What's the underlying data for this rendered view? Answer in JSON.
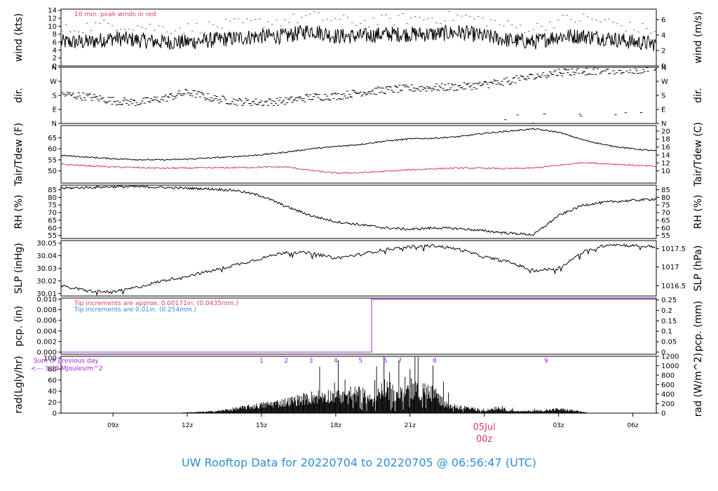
{
  "title": "UW Rooftop Data for 20220704  to  20220705 @ 06:56:47  (UTC)",
  "colors": {
    "black": "#000000",
    "red": "#d9405e",
    "blue": "#2b8ed6",
    "purple": "#a020f0"
  },
  "x_axis": {
    "ticks": [
      {
        "hour": 9,
        "label": "09z"
      },
      {
        "hour": 12,
        "label": "12z"
      },
      {
        "hour": 15,
        "label": "15z"
      },
      {
        "hour": 18,
        "label": "18z"
      },
      {
        "hour": 21,
        "label": "21z"
      },
      {
        "hour": 24,
        "label": "00z"
      },
      {
        "hour": 27,
        "label": "03z"
      },
      {
        "hour": 30,
        "label": "06z"
      }
    ],
    "date_label": "05Jul",
    "date_hour": 24,
    "range_hours": [
      6.9,
      30.95
    ]
  },
  "chart_data": [
    {
      "id": "wind",
      "type": "line",
      "ylabel": "wind (kts)",
      "ylabel_right": "wind (m/s)",
      "ylim": [
        0,
        14.3
      ],
      "yticks": [
        0,
        2,
        4,
        6,
        8,
        10,
        12,
        14
      ],
      "yticks_right": [
        {
          "label": "0",
          "value": 0
        },
        {
          "label": "2",
          "value": 3.89
        },
        {
          "label": "4",
          "value": 7.78
        },
        {
          "label": "6",
          "value": 11.66
        }
      ],
      "annotation": "10 min. peak winds in red",
      "series": [
        {
          "role": "wind",
          "hours": [
            7,
            8,
            9,
            10,
            11,
            12,
            13,
            14,
            15,
            16,
            17,
            18,
            19,
            20,
            21,
            22,
            23,
            24,
            25,
            26,
            27,
            28,
            29,
            30,
            31
          ],
          "values": [
            6,
            6,
            7,
            6.5,
            6,
            6,
            6.5,
            7,
            7.5,
            7.5,
            9,
            7.5,
            7.5,
            8,
            8,
            8,
            8.5,
            7.5,
            6.5,
            6,
            7.5,
            7.5,
            7,
            6,
            5.5
          ],
          "jitter": 2
        },
        {
          "role": "peak",
          "hours": [
            7,
            8,
            9,
            10,
            11,
            12,
            13,
            14,
            15,
            16,
            17,
            18,
            19,
            20,
            21,
            22,
            23,
            24,
            25,
            26,
            27,
            28,
            29,
            30,
            31
          ],
          "values": [
            9,
            10,
            10.5,
            10,
            9.5,
            9.5,
            10,
            10.5,
            11,
            11.5,
            12.5,
            11.5,
            11,
            11.5,
            12,
            12,
            12.5,
            11.5,
            10,
            9.5,
            11.5,
            12,
            11,
            9.5,
            9
          ],
          "jitter": 1.5
        }
      ]
    },
    {
      "id": "dir",
      "type": "scatter",
      "ylabel": "dir.",
      "ylabel_right": "dir.",
      "ylim": [
        0,
        360
      ],
      "yticks": [
        {
          "label": "N",
          "value": 0
        },
        {
          "label": "E",
          "value": 90
        },
        {
          "label": "S",
          "value": 180
        },
        {
          "label": "W",
          "value": 270
        },
        {
          "label": "N",
          "value": 360
        }
      ],
      "series": [
        {
          "role": "direction",
          "hours": [
            7,
            8,
            9,
            10,
            11,
            12,
            13,
            14,
            15,
            16,
            17,
            18,
            19,
            20,
            21,
            22,
            23,
            24,
            25,
            26,
            27,
            28,
            29,
            30,
            31
          ],
          "values": [
            185,
            170,
            145,
            135,
            160,
            200,
            160,
            140,
            135,
            145,
            170,
            175,
            200,
            215,
            225,
            230,
            235,
            250,
            275,
            300,
            330,
            335,
            340,
            345,
            355
          ],
          "jitter": 25
        }
      ]
    },
    {
      "id": "temp",
      "type": "line",
      "ylabel": "Tair/Tdew (F)",
      "ylabel_right": "Tair/Tdew (C)",
      "ylim": [
        44.5,
        70.5
      ],
      "yticks": [
        50,
        55,
        60,
        65
      ],
      "yticks_right": [
        {
          "label": "10",
          "value": 50
        },
        {
          "label": "12",
          "value": 53.6
        },
        {
          "label": "14",
          "value": 57.2
        },
        {
          "label": "16",
          "value": 60.8
        },
        {
          "label": "18",
          "value": 64.4
        },
        {
          "label": "20",
          "value": 68
        }
      ],
      "series": [
        {
          "role": "air",
          "hours": [
            6.9,
            8,
            9,
            10,
            11,
            12,
            13,
            14,
            15,
            16,
            17,
            18,
            19,
            20,
            21,
            22,
            23,
            24,
            25,
            26,
            27,
            28,
            29,
            30,
            30.95
          ],
          "values": [
            57,
            56.2,
            55.5,
            55.1,
            55,
            55.3,
            55.9,
            56.5,
            57.3,
            58.5,
            60,
            61,
            62,
            63.5,
            64.5,
            64.8,
            65.5,
            67,
            68,
            69,
            67.5,
            64,
            61.5,
            60,
            59
          ],
          "jitter": 0.3
        },
        {
          "role": "dew",
          "hours": [
            6.9,
            8,
            9,
            10,
            11,
            12,
            13,
            14,
            15,
            16,
            17,
            18,
            19,
            20,
            21,
            22,
            23,
            24,
            25,
            26,
            27,
            28,
            29,
            30,
            30.95
          ],
          "values": [
            53,
            52.3,
            51.8,
            51.5,
            51.2,
            51.3,
            51.4,
            51.5,
            51.7,
            51.8,
            50.2,
            49,
            49.2,
            49.8,
            50.5,
            51,
            51.3,
            51.2,
            51,
            51.3,
            52.5,
            53.8,
            53.2,
            52.6,
            52
          ],
          "jitter": 0.35
        }
      ]
    },
    {
      "id": "rh",
      "type": "line",
      "ylabel": "RH (%)",
      "ylabel_right": "RH (%)",
      "ylim": [
        53,
        88
      ],
      "yticks": [
        55,
        60,
        65,
        70,
        75,
        80,
        85
      ],
      "yticks_right": [
        {
          "label": "55",
          "value": 55
        },
        {
          "label": "60",
          "value": 60
        },
        {
          "label": "65",
          "value": 65
        },
        {
          "label": "70",
          "value": 70
        },
        {
          "label": "75",
          "value": 75
        },
        {
          "label": "80",
          "value": 80
        },
        {
          "label": "85",
          "value": 85
        }
      ],
      "series": [
        {
          "role": "rh",
          "hours": [
            6.9,
            8,
            9,
            10,
            11,
            12,
            13,
            14,
            15,
            16,
            17,
            18,
            19,
            20,
            21,
            22,
            23,
            24,
            25,
            26,
            27,
            28,
            29,
            30,
            30.95
          ],
          "values": [
            86,
            86.5,
            87,
            87,
            86.5,
            86,
            85.5,
            84.5,
            81,
            74,
            68,
            64,
            62,
            60,
            59,
            60,
            59.5,
            58,
            56.5,
            55.5,
            68,
            75,
            77,
            78,
            79
          ],
          "jitter": 0.8
        }
      ]
    },
    {
      "id": "slp",
      "type": "line",
      "ylabel": "SLP (inHg)",
      "ylabel_right": "SLP (hPa)",
      "ylim": [
        30.008,
        30.052
      ],
      "yticks": [
        30.01,
        30.02,
        30.03,
        30.04,
        30.05
      ],
      "yticks_right": [
        {
          "label": "1016.5",
          "value": 30.0162
        },
        {
          "label": "1017",
          "value": 30.031
        },
        {
          "label": "1017.5",
          "value": 30.0457
        }
      ],
      "series": [
        {
          "role": "slp",
          "hours": [
            6.9,
            8,
            9,
            10,
            11,
            12,
            13,
            14,
            15,
            16,
            17,
            18,
            19,
            20,
            21,
            22,
            23,
            24,
            25,
            26,
            27,
            28,
            29,
            30,
            30.95
          ],
          "values": [
            30.016,
            30.012,
            30.011,
            30.015,
            30.02,
            30.024,
            30.028,
            30.033,
            30.038,
            30.043,
            30.042,
            30.038,
            30.041,
            30.045,
            30.047,
            30.048,
            30.045,
            30.039,
            30.035,
            30.028,
            30.03,
            30.043,
            30.049,
            30.048,
            30.047
          ],
          "jitter": 0.0012
        }
      ]
    },
    {
      "id": "pcp",
      "type": "line",
      "ylabel": "pcp. (in)",
      "ylabel_right": "pcp. (mm)",
      "ylim": [
        -0.0004,
        0.0102
      ],
      "yticks": [
        0,
        0.002,
        0.004,
        0.006,
        0.008,
        0.01
      ],
      "ytick_labels": [
        "0.000",
        "0.002",
        "0.004",
        "0.006",
        "0.008",
        "0.010"
      ],
      "yticks_right": [
        {
          "label": "0",
          "value": 0
        },
        {
          "label": "0.05",
          "value": 0.00197
        },
        {
          "label": "0.1",
          "value": 0.00394
        },
        {
          "label": "0.15",
          "value": 0.0059
        },
        {
          "label": "0.2",
          "value": 0.00787
        },
        {
          "label": "0.25",
          "value": 0.00984
        }
      ],
      "annotations": [
        {
          "text": "Tip increments are approx. 0.00171in. (0.0435mm.)",
          "color": "red"
        },
        {
          "text": "Tip increments are 0.01in. (0.254mm.)",
          "color": "blue"
        }
      ],
      "series": [
        {
          "role": "pcp",
          "hours": [
            6.9,
            19.45,
            19.45,
            30.95
          ],
          "values": [
            0,
            0,
            0.01,
            0.01
          ]
        }
      ]
    },
    {
      "id": "rad",
      "type": "bar",
      "ylabel": "rad(Lgly/hr)",
      "ylabel_right": "rad (W/m^2)",
      "ylim": [
        0,
        103
      ],
      "yticks": [
        0,
        20,
        40,
        60,
        80,
        100
      ],
      "yticks_right": [
        {
          "label": "0",
          "value": 0
        },
        {
          "label": "200",
          "value": 17.2
        },
        {
          "label": "400",
          "value": 34.4
        },
        {
          "label": "600",
          "value": 51.6
        },
        {
          "label": "800",
          "value": 68.8
        },
        {
          "label": "1000",
          "value": 86
        },
        {
          "label": "1200",
          "value": 103.2
        }
      ],
      "annotations": [
        "Sum of previous day",
        "<--- 3.33 MJoules/m^2"
      ],
      "hour_markers": [
        {
          "label": "1",
          "hour": 15
        },
        {
          "label": "2",
          "hour": 16
        },
        {
          "label": "3",
          "hour": 17
        },
        {
          "label": "4",
          "hour": 18
        },
        {
          "label": "5",
          "hour": 19
        },
        {
          "label": "6",
          "hour": 20
        },
        {
          "label": "7",
          "hour": 20.6
        },
        {
          "label": "8",
          "hour": 22
        },
        {
          "label": "9",
          "hour": 26.5
        }
      ],
      "series": [
        {
          "role": "radiation",
          "hours": [
            11.8,
            12.5,
            13,
            13.5,
            14,
            14.5,
            15,
            15.5,
            16,
            16.5,
            17,
            17.5,
            18,
            18.5,
            19,
            19.5,
            20,
            20.5,
            21,
            21.5,
            22,
            22.5,
            23,
            23.5,
            24,
            24.5,
            25,
            25.5,
            26,
            26.5,
            27,
            27.5,
            28,
            28.2
          ],
          "values": [
            1,
            2,
            3,
            5,
            8,
            11,
            14,
            17,
            20,
            24,
            28,
            32,
            30,
            34,
            35,
            20,
            45,
            30,
            45,
            40,
            35,
            12,
            10,
            8,
            4,
            10,
            5,
            3,
            4,
            5,
            7,
            5,
            2,
            0.5
          ],
          "jitter": 0.45
        }
      ]
    }
  ]
}
